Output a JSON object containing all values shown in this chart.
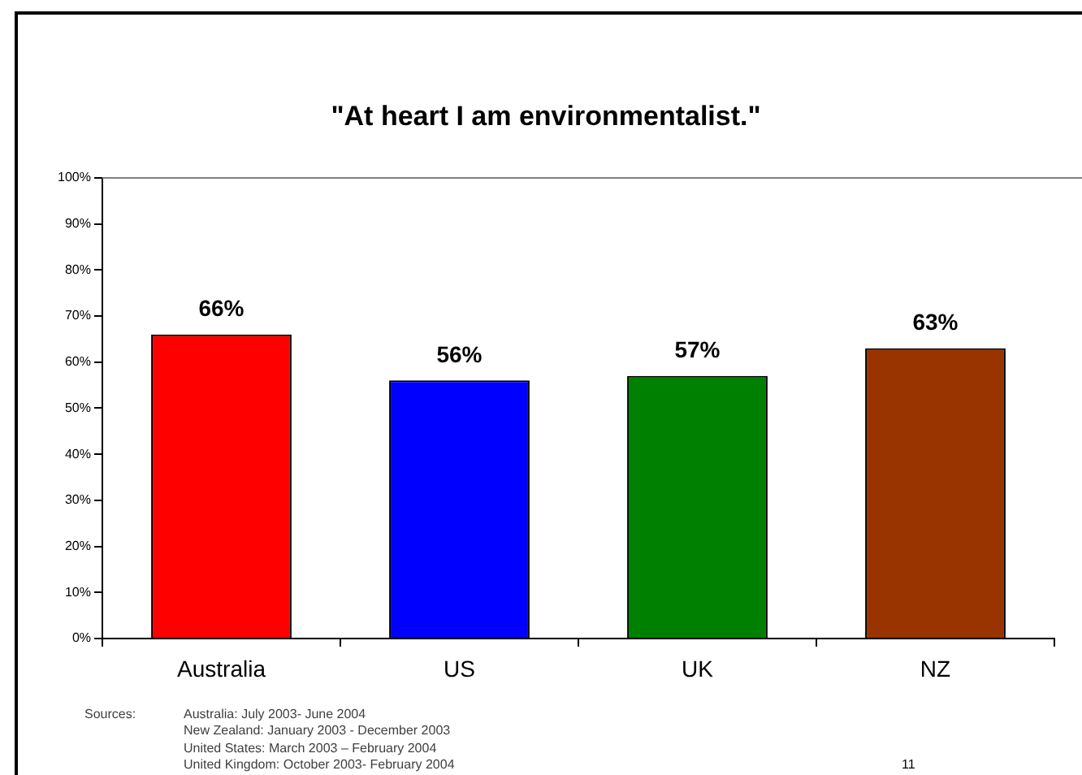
{
  "chart_data": {
    "type": "bar",
    "title": "\"At heart I am environmentalist.\"",
    "categories": [
      "Australia",
      "US",
      "UK",
      "NZ"
    ],
    "values": [
      66,
      56,
      57,
      63
    ],
    "colors": [
      "#ff0000",
      "#0000ff",
      "#008000",
      "#993300"
    ],
    "value_labels": [
      "66%",
      "56%",
      "57%",
      "63%"
    ],
    "ylim": [
      0,
      100
    ],
    "yticks": [
      {
        "value": 0,
        "label": "0%"
      },
      {
        "value": 10,
        "label": "10%"
      },
      {
        "value": 20,
        "label": "20%"
      },
      {
        "value": 30,
        "label": "30%"
      },
      {
        "value": 40,
        "label": "40%"
      },
      {
        "value": 50,
        "label": "50%"
      },
      {
        "value": 60,
        "label": "60%"
      },
      {
        "value": 70,
        "label": "70%"
      },
      {
        "value": 80,
        "label": "80%"
      },
      {
        "value": 90,
        "label": "90%"
      },
      {
        "value": 100,
        "label": "100%"
      }
    ],
    "annotations": [
      "Sources:",
      "Australia: July 2003- June 2004",
      "New Zealand: January 2003 - December 2003",
      "United States: March 2003 – February 2004",
      "United Kingdom: October 2003- February 2004",
      "11"
    ]
  }
}
